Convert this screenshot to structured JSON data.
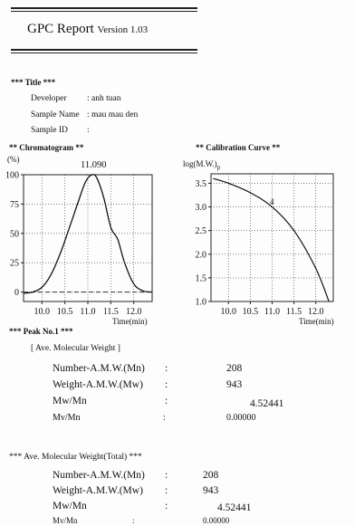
{
  "header": {
    "title": "GPC Report",
    "version": "Version 1.03"
  },
  "title_section": {
    "heading": "*** Title ***",
    "fields": [
      {
        "label": "Developer",
        "sep": ": anh tuan"
      },
      {
        "label": "Sample Name",
        "sep": ": mau mau den"
      },
      {
        "label": "Sample ID",
        "sep": ":"
      }
    ]
  },
  "chromatogram": {
    "heading": "** Chromatogram **",
    "y_unit": "(%)",
    "peak_label": "11.090",
    "x_title": "Time(min)",
    "x_ticks": [
      "10.0",
      "10.5",
      "11.0",
      "11.5",
      "12.0"
    ],
    "y_ticks": [
      "100",
      "75",
      "50",
      "25",
      "0"
    ]
  },
  "calibration": {
    "heading": "** Calibration Curve **",
    "y_title": "log(M.W.)",
    "y_sub": "p",
    "marker": "4",
    "x_title": "Time(min)",
    "x_ticks": [
      "10.0",
      "10.5",
      "11.0",
      "11.5",
      "12.0"
    ],
    "y_ticks": [
      "3.5",
      "3.0",
      "2.5",
      "2.0",
      "1.5",
      "1.0"
    ]
  },
  "chart_data": [
    {
      "type": "line",
      "title": "",
      "xlabel": "Time(min)",
      "ylabel": "(%)",
      "xlim": [
        9.6,
        12.4
      ],
      "ylim": [
        -8,
        100
      ],
      "x": [
        9.6,
        9.8,
        10.0,
        10.2,
        10.4,
        10.6,
        10.8,
        10.95,
        11.09,
        11.2,
        11.35,
        11.5,
        11.65,
        11.8,
        12.0,
        12.2,
        12.4
      ],
      "series": [
        {
          "values": [
            -1,
            0,
            4,
            15,
            33,
            55,
            78,
            94,
            100,
            97,
            80,
            55,
            45,
            25,
            7,
            1,
            0
          ]
        }
      ],
      "grid": true
    },
    {
      "type": "line",
      "title": "",
      "xlabel": "Time(min)",
      "ylabel": "log(M.W.)",
      "xlim": [
        9.6,
        12.4
      ],
      "ylim": [
        1.0,
        3.7
      ],
      "x": [
        9.65,
        10.0,
        10.5,
        11.0,
        11.5,
        12.0,
        12.3
      ],
      "series": [
        {
          "values": [
            3.6,
            3.5,
            3.3,
            3.0,
            2.5,
            1.7,
            1.0
          ]
        }
      ],
      "grid": true
    }
  ],
  "peak": {
    "heading": "*** Peak No.1 ***",
    "group_label": "[ Ave. Molecular Weight ]",
    "rows": [
      {
        "label": "Number-A.M.W.(Mn)",
        "sep": ":",
        "value": "208"
      },
      {
        "label": "Weight-A.M.W.(Mw)",
        "sep": ":",
        "value": "943"
      },
      {
        "label": "Mw/Mn",
        "sep": ":",
        "value": "4.52441"
      },
      {
        "label": "Mv/Mn",
        "sep": ":",
        "value": "0.00000"
      }
    ]
  },
  "total": {
    "heading": "*** Ave. Molecular Weight(Total) ***",
    "rows": [
      {
        "label": "Number-A.M.W.(Mn)",
        "sep": ":",
        "value": "208"
      },
      {
        "label": "Weight-A.M.W.(Mw)",
        "sep": ":",
        "value": "943"
      },
      {
        "label": "Mw/Mn",
        "sep": ":",
        "value": "4.52441"
      },
      {
        "label": "Mv/Mn",
        "sep": ":",
        "value": "0.00000"
      }
    ]
  }
}
